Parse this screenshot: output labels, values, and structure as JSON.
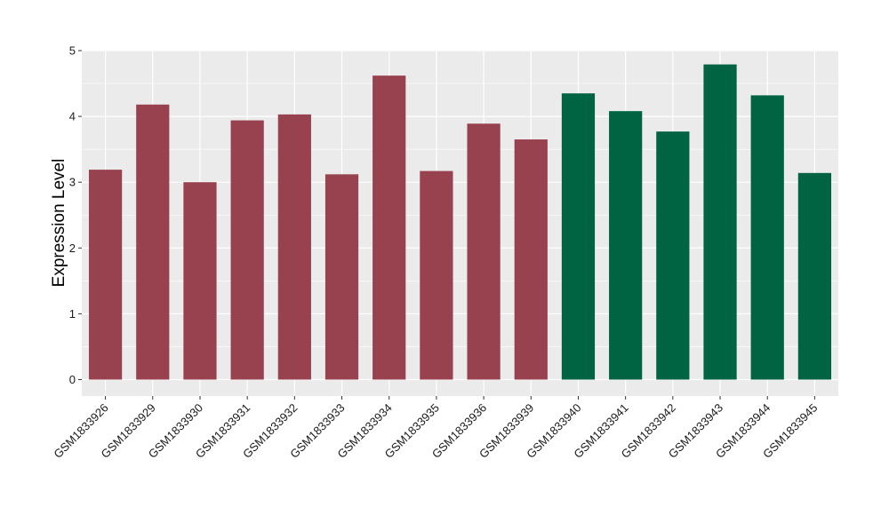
{
  "chart_data": {
    "type": "bar",
    "title": "",
    "xlabel": "",
    "ylabel": "Expression Level",
    "ylim": [
      -0.25,
      5.0
    ],
    "yticks": [
      0,
      1,
      2,
      3,
      4,
      5
    ],
    "grid": true,
    "categories": [
      "GSM1833926",
      "GSM1833929",
      "GSM1833930",
      "GSM1833931",
      "GSM1833932",
      "GSM1833933",
      "GSM1833934",
      "GSM1833935",
      "GSM1833936",
      "GSM1833939",
      "GSM1833940",
      "GSM1833941",
      "GSM1833942",
      "GSM1833943",
      "GSM1833944",
      "GSM1833945"
    ],
    "values": [
      3.19,
      4.18,
      3.0,
      3.94,
      4.03,
      3.12,
      4.62,
      3.17,
      3.89,
      3.65,
      4.35,
      4.08,
      3.77,
      4.79,
      4.32,
      3.14
    ],
    "groups": [
      0,
      0,
      0,
      0,
      0,
      0,
      0,
      0,
      0,
      0,
      1,
      1,
      1,
      1,
      1,
      1
    ],
    "group_colors": [
      "#99424f",
      "#006443"
    ],
    "panel_color": "#ebebeb",
    "grid_color": "#ffffff"
  }
}
